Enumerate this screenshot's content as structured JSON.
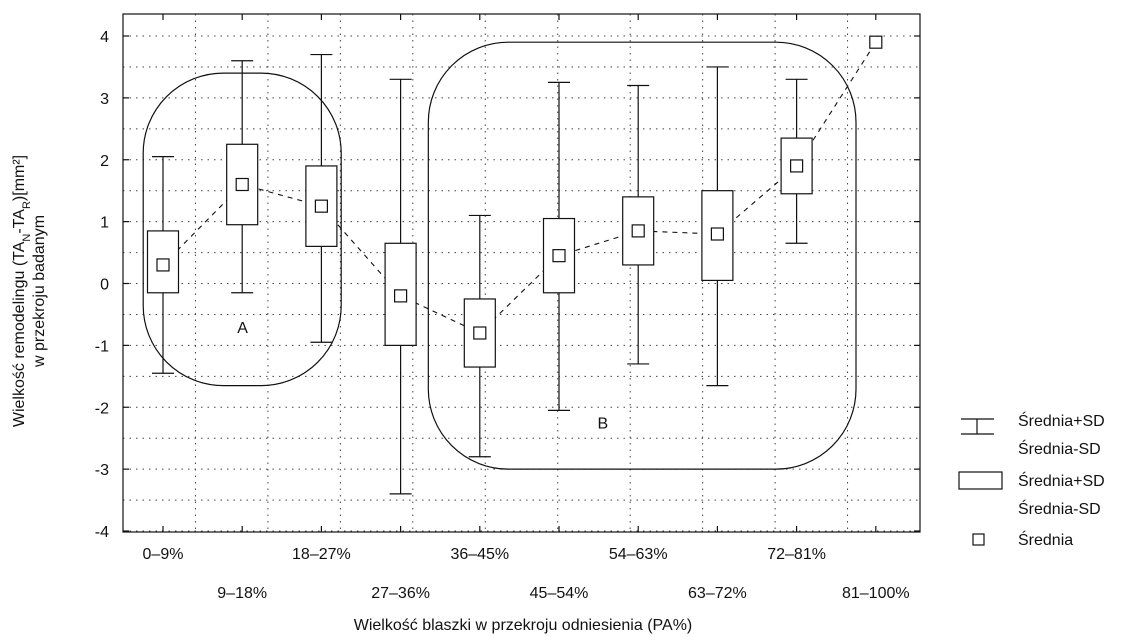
{
  "chart_data": {
    "type": "box",
    "ylabel_line1": "Wielkość remodelingu (TA",
    "ylabel_sub1": "N",
    "ylabel_mid": "-TA",
    "ylabel_sub2": "R",
    "ylabel_end": ")[mm²]",
    "ylabel_line2": "w przekroju badanym",
    "xlabel": "Wielkość blaszki w przekroju odniesienia (PA%)",
    "ylim": [
      -4,
      4
    ],
    "yticks": [
      "4",
      "3",
      "2",
      "1",
      "0",
      "-1",
      "-2",
      "-3",
      "-4"
    ],
    "ytick_values": [
      4,
      3,
      2,
      1,
      0,
      -1,
      -2,
      -3,
      -4
    ],
    "grid": true,
    "categories": [
      "0–9%",
      "9–18%",
      "18–27%",
      "27–36%",
      "36–45%",
      "45–54%",
      "54–63%",
      "63–72%",
      "72–81%",
      "81–100%"
    ],
    "series": [
      {
        "name": "Średnia",
        "mean": [
          0.3,
          1.6,
          1.25,
          -0.2,
          -0.8,
          0.45,
          0.85,
          0.8,
          1.9,
          3.9
        ],
        "box_low": [
          -0.15,
          0.95,
          0.6,
          -1.0,
          -1.35,
          -0.15,
          0.3,
          0.05,
          1.45,
          null
        ],
        "box_high": [
          0.85,
          2.25,
          1.9,
          0.65,
          -0.25,
          1.05,
          1.4,
          1.5,
          2.35,
          null
        ],
        "wh_low": [
          -1.45,
          -0.15,
          -0.95,
          -3.4,
          -2.8,
          -2.05,
          -1.3,
          -1.65,
          0.65,
          null
        ],
        "wh_high": [
          2.05,
          3.6,
          3.7,
          3.3,
          1.1,
          3.25,
          3.2,
          3.5,
          3.3,
          null
        ]
      }
    ],
    "annotations": [
      {
        "text": "A",
        "x_category": 1.0,
        "y": -0.7
      },
      {
        "text": "B",
        "x_category": 5.55,
        "y": -2.25
      }
    ],
    "clusters": [
      {
        "name": "A",
        "x_from": -0.25,
        "x_to": 2.25,
        "y_from": -1.65,
        "y_to": 3.4
      },
      {
        "name": "B",
        "x_from": 3.35,
        "x_to": 8.75,
        "y_from": -3.0,
        "y_to": 3.9
      }
    ],
    "legend": {
      "placement": "bottom-right",
      "entries": [
        {
          "symbol": "whisker",
          "line1": "Średnia+SD",
          "line2": "Średnia-SD"
        },
        {
          "symbol": "box",
          "line1": "Średnia+SD",
          "line2": "Średnia-SD"
        },
        {
          "symbol": "mean",
          "line1": "Średnia"
        }
      ]
    }
  }
}
